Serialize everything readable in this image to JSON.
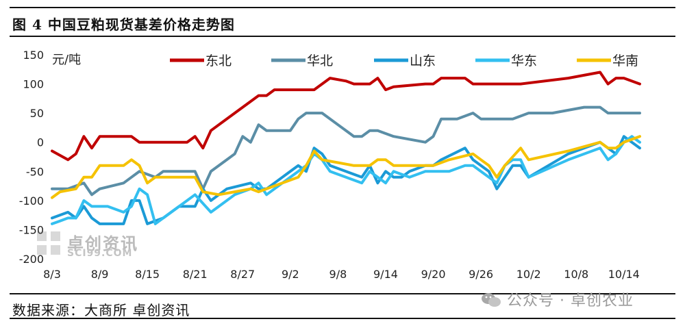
{
  "title": "图 4 中国豆粕现货基差价格走势图",
  "source": "数据来源：大商所 卓创资讯",
  "watermark": {
    "name": "卓创资讯",
    "sub": "SCI99.COM",
    "wechat": "公众号 · 卓创农业"
  },
  "chart_data": {
    "type": "line",
    "unit_label": "元/吨",
    "ylim": [
      -200,
      150
    ],
    "yticks": [
      150,
      100,
      50,
      0,
      -50,
      -100,
      -150,
      -200
    ],
    "xticks": [
      "8/3",
      "8/9",
      "8/15",
      "8/21",
      "8/27",
      "9/2",
      "9/8",
      "9/14",
      "9/20",
      "9/26",
      "10/2",
      "10/8",
      "10/14"
    ],
    "xlim_days": [
      0,
      72
    ],
    "legend_position": "top",
    "grid": false,
    "series": [
      {
        "name": "东北",
        "color": "#c00000",
        "points": [
          [
            0,
            -15
          ],
          [
            2,
            -30
          ],
          [
            3,
            -20
          ],
          [
            4,
            10
          ],
          [
            5,
            -10
          ],
          [
            6,
            10
          ],
          [
            10,
            10
          ],
          [
            11,
            0
          ],
          [
            17,
            0
          ],
          [
            18,
            10
          ],
          [
            19,
            -10
          ],
          [
            20,
            20
          ],
          [
            23,
            50
          ],
          [
            25,
            70
          ],
          [
            26,
            80
          ],
          [
            27,
            80
          ],
          [
            28,
            90
          ],
          [
            32,
            90
          ],
          [
            33,
            90
          ],
          [
            34,
            100
          ],
          [
            35,
            110
          ],
          [
            37,
            105
          ],
          [
            38,
            100
          ],
          [
            40,
            100
          ],
          [
            41,
            110
          ],
          [
            42,
            90
          ],
          [
            43,
            95
          ],
          [
            47,
            100
          ],
          [
            48,
            100
          ],
          [
            49,
            110
          ],
          [
            52,
            110
          ],
          [
            53,
            100
          ],
          [
            57,
            100
          ],
          [
            59,
            100
          ],
          [
            65,
            110
          ],
          [
            69,
            120
          ],
          [
            70,
            100
          ],
          [
            71,
            110
          ],
          [
            72,
            110
          ],
          [
            74,
            100
          ]
        ]
      },
      {
        "name": "华北",
        "color": "#5b8ea6",
        "points": [
          [
            0,
            -80
          ],
          [
            2,
            -80
          ],
          [
            4,
            -70
          ],
          [
            5,
            -90
          ],
          [
            6,
            -80
          ],
          [
            9,
            -70
          ],
          [
            10,
            -60
          ],
          [
            11,
            -50
          ],
          [
            13,
            -60
          ],
          [
            14,
            -50
          ],
          [
            18,
            -50
          ],
          [
            19,
            -80
          ],
          [
            20,
            -50
          ],
          [
            22,
            -30
          ],
          [
            23,
            -20
          ],
          [
            24,
            10
          ],
          [
            25,
            0
          ],
          [
            26,
            30
          ],
          [
            27,
            20
          ],
          [
            29,
            20
          ],
          [
            30,
            20
          ],
          [
            31,
            40
          ],
          [
            32,
            50
          ],
          [
            34,
            50
          ],
          [
            36,
            30
          ],
          [
            38,
            10
          ],
          [
            39,
            10
          ],
          [
            40,
            20
          ],
          [
            41,
            20
          ],
          [
            43,
            10
          ],
          [
            47,
            0
          ],
          [
            48,
            10
          ],
          [
            49,
            40
          ],
          [
            51,
            40
          ],
          [
            53,
            50
          ],
          [
            54,
            40
          ],
          [
            58,
            40
          ],
          [
            60,
            50
          ],
          [
            63,
            50
          ],
          [
            67,
            60
          ],
          [
            69,
            60
          ],
          [
            70,
            50
          ],
          [
            72,
            50
          ],
          [
            74,
            50
          ]
        ]
      },
      {
        "name": "山东",
        "color": "#1b9ad6",
        "points": [
          [
            0,
            -130
          ],
          [
            1,
            -125
          ],
          [
            2,
            -120
          ],
          [
            3,
            -130
          ],
          [
            4,
            -110
          ],
          [
            5,
            -130
          ],
          [
            6,
            -140
          ],
          [
            7,
            -140
          ],
          [
            9,
            -140
          ],
          [
            10,
            -100
          ],
          [
            11,
            -100
          ],
          [
            12,
            -140
          ],
          [
            14,
            -130
          ],
          [
            16,
            -110
          ],
          [
            18,
            -110
          ],
          [
            19,
            -80
          ],
          [
            20,
            -100
          ],
          [
            22,
            -80
          ],
          [
            25,
            -70
          ],
          [
            26,
            -80
          ],
          [
            27,
            -80
          ],
          [
            29,
            -60
          ],
          [
            30,
            -50
          ],
          [
            31,
            -40
          ],
          [
            32,
            -50
          ],
          [
            33,
            -10
          ],
          [
            34,
            -20
          ],
          [
            35,
            -40
          ],
          [
            37,
            -50
          ],
          [
            39,
            -60
          ],
          [
            40,
            -40
          ],
          [
            41,
            -70
          ],
          [
            42,
            -50
          ],
          [
            43,
            -60
          ],
          [
            44,
            -60
          ],
          [
            45,
            -50
          ],
          [
            47,
            -40
          ],
          [
            48,
            -40
          ],
          [
            49,
            -30
          ],
          [
            52,
            -10
          ],
          [
            53,
            -30
          ],
          [
            55,
            -50
          ],
          [
            56,
            -80
          ],
          [
            57,
            -60
          ],
          [
            58,
            -40
          ],
          [
            59,
            -40
          ],
          [
            60,
            -60
          ],
          [
            65,
            -20
          ],
          [
            69,
            0
          ],
          [
            70,
            -10
          ],
          [
            71,
            -20
          ],
          [
            72,
            10
          ],
          [
            73,
            0
          ],
          [
            74,
            -10
          ]
        ]
      },
      {
        "name": "华东",
        "color": "#33bff0",
        "points": [
          [
            0,
            -140
          ],
          [
            1,
            -135
          ],
          [
            2,
            -130
          ],
          [
            3,
            -130
          ],
          [
            4,
            -100
          ],
          [
            5,
            -110
          ],
          [
            7,
            -110
          ],
          [
            9,
            -120
          ],
          [
            10,
            -110
          ],
          [
            11,
            -80
          ],
          [
            12,
            -90
          ],
          [
            13,
            -140
          ],
          [
            15,
            -120
          ],
          [
            17,
            -100
          ],
          [
            18,
            -90
          ],
          [
            20,
            -120
          ],
          [
            21,
            -110
          ],
          [
            23,
            -90
          ],
          [
            25,
            -80
          ],
          [
            26,
            -70
          ],
          [
            27,
            -90
          ],
          [
            29,
            -70
          ],
          [
            30,
            -60
          ],
          [
            31,
            -50
          ],
          [
            32,
            -40
          ],
          [
            33,
            -20
          ],
          [
            34,
            -30
          ],
          [
            35,
            -50
          ],
          [
            37,
            -60
          ],
          [
            39,
            -70
          ],
          [
            40,
            -50
          ],
          [
            41,
            -60
          ],
          [
            42,
            -70
          ],
          [
            43,
            -50
          ],
          [
            45,
            -60
          ],
          [
            47,
            -50
          ],
          [
            50,
            -50
          ],
          [
            52,
            -40
          ],
          [
            53,
            -40
          ],
          [
            55,
            -60
          ],
          [
            56,
            -70
          ],
          [
            57,
            -40
          ],
          [
            58,
            -30
          ],
          [
            59,
            -30
          ],
          [
            60,
            -60
          ],
          [
            65,
            -30
          ],
          [
            69,
            -10
          ],
          [
            70,
            -30
          ],
          [
            71,
            -20
          ],
          [
            72,
            0
          ],
          [
            73,
            10
          ],
          [
            74,
            0
          ]
        ]
      },
      {
        "name": "华南",
        "color": "#f5c200",
        "points": [
          [
            0,
            -95
          ],
          [
            1,
            -85
          ],
          [
            3,
            -80
          ],
          [
            4,
            -60
          ],
          [
            5,
            -60
          ],
          [
            6,
            -40
          ],
          [
            7,
            -40
          ],
          [
            9,
            -40
          ],
          [
            10,
            -30
          ],
          [
            11,
            -40
          ],
          [
            12,
            -70
          ],
          [
            13,
            -60
          ],
          [
            18,
            -60
          ],
          [
            19,
            -85
          ],
          [
            21,
            -90
          ],
          [
            23,
            -85
          ],
          [
            25,
            -80
          ],
          [
            26,
            -85
          ],
          [
            27,
            -80
          ],
          [
            29,
            -70
          ],
          [
            31,
            -60
          ],
          [
            32,
            -40
          ],
          [
            33,
            -15
          ],
          [
            34,
            -30
          ],
          [
            36,
            -35
          ],
          [
            38,
            -40
          ],
          [
            40,
            -40
          ],
          [
            41,
            -30
          ],
          [
            42,
            -30
          ],
          [
            43,
            -40
          ],
          [
            45,
            -40
          ],
          [
            48,
            -40
          ],
          [
            50,
            -30
          ],
          [
            53,
            -20
          ],
          [
            54,
            -30
          ],
          [
            55,
            -40
          ],
          [
            56,
            -60
          ],
          [
            57,
            -40
          ],
          [
            59,
            -10
          ],
          [
            60,
            -30
          ],
          [
            65,
            -15
          ],
          [
            69,
            0
          ],
          [
            70,
            -10
          ],
          [
            71,
            -10
          ],
          [
            72,
            0
          ],
          [
            74,
            10
          ]
        ]
      }
    ]
  }
}
